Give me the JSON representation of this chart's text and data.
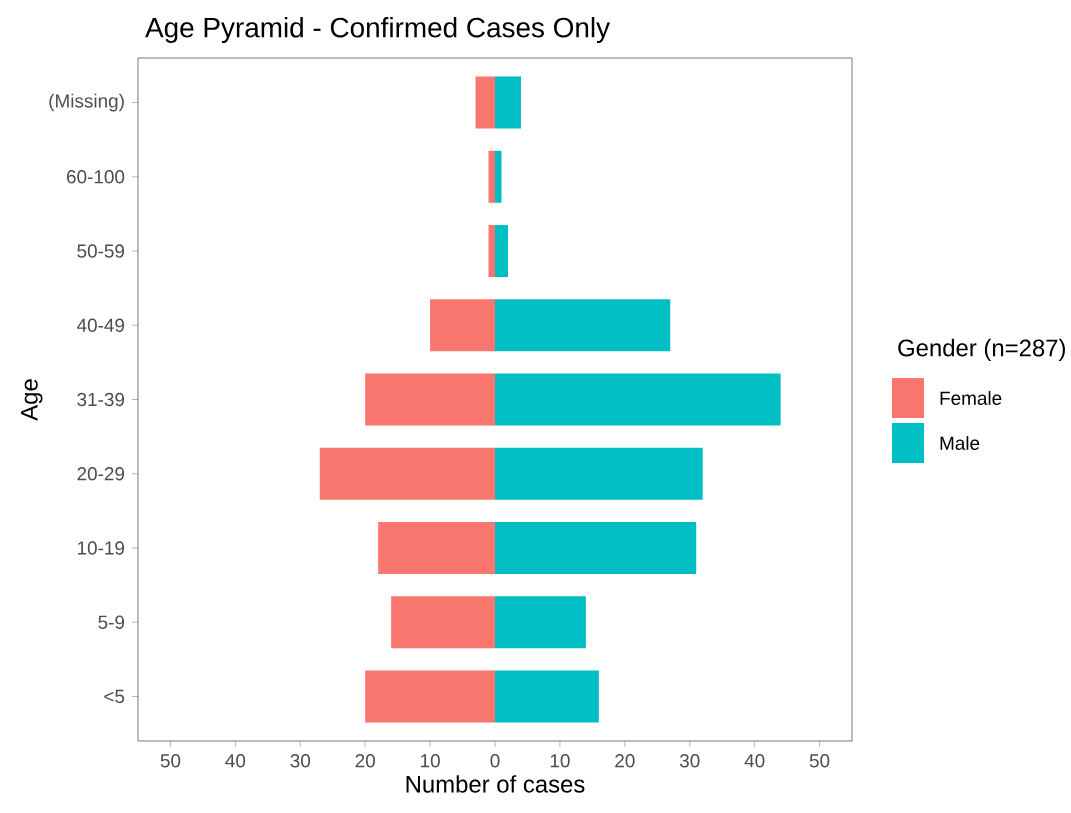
{
  "chart_data": {
    "type": "bar",
    "orientation": "horizontal",
    "stacked": true,
    "title": "Age Pyramid - Confirmed Cases Only",
    "xlabel": "Number of cases",
    "ylabel": "Age",
    "legend_title": "Gender (n=287)",
    "legend": "right",
    "categories": [
      "(Missing)",
      "60-100",
      "50-59",
      "40-49",
      "31-39",
      "20-29",
      "10-19",
      "5-9",
      "<5"
    ],
    "series": [
      {
        "name": "Female",
        "color": "#f8766d",
        "values": [
          -3,
          -1,
          -1,
          -10,
          -20,
          -27,
          -18,
          -16,
          -20
        ]
      },
      {
        "name": "Male",
        "color": "#00bfc4",
        "values": [
          4,
          1,
          2,
          27,
          44,
          32,
          31,
          14,
          16
        ]
      }
    ],
    "xlim": [
      -55,
      55
    ],
    "xticks": [
      {
        "value": -50,
        "label": "50"
      },
      {
        "value": -40,
        "label": "40"
      },
      {
        "value": -30,
        "label": "30"
      },
      {
        "value": -20,
        "label": "20"
      },
      {
        "value": -10,
        "label": "10"
      },
      0,
      10,
      20,
      30,
      40,
      50
    ]
  }
}
